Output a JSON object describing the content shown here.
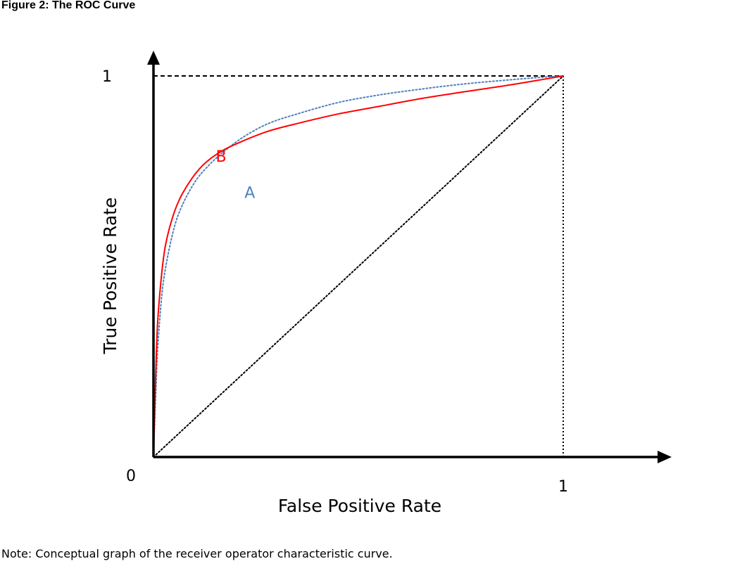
{
  "figure": {
    "title": "Figure 2: The ROC Curve",
    "note": "Note: Conceptual graph of the receiver operator characteristic curve."
  },
  "chart_data": {
    "type": "line",
    "title": "Figure 2: The ROC Curve",
    "xlabel": "False Positive Rate",
    "ylabel": "True Positive Rate",
    "xlim": [
      0,
      1
    ],
    "ylim": [
      0,
      1
    ],
    "origin_label": "0",
    "x_ticks": [
      {
        "value": 1,
        "label": "1"
      }
    ],
    "y_ticks": [
      {
        "value": 1,
        "label": "1"
      }
    ],
    "grid": false,
    "legend": "none",
    "series": [
      {
        "name": "A",
        "style": "dotted",
        "color": "#4F81BD",
        "x": [
          0,
          0.005,
          0.01,
          0.02,
          0.03,
          0.05,
          0.07,
          0.1,
          0.13,
          0.17,
          0.22,
          0.28,
          0.35,
          0.45,
          0.55,
          0.65,
          0.75,
          0.85,
          0.93,
          1
        ],
        "y": [
          0,
          0.15,
          0.28,
          0.42,
          0.5,
          0.6,
          0.66,
          0.72,
          0.76,
          0.8,
          0.84,
          0.875,
          0.9,
          0.93,
          0.95,
          0.965,
          0.978,
          0.988,
          0.995,
          1
        ]
      },
      {
        "name": "B",
        "style": "solid",
        "color": "#FF0000",
        "x": [
          0,
          0.005,
          0.01,
          0.02,
          0.03,
          0.05,
          0.07,
          0.1,
          0.13,
          0.17,
          0.22,
          0.28,
          0.35,
          0.45,
          0.55,
          0.65,
          0.75,
          0.85,
          0.93,
          1
        ],
        "y": [
          0,
          0.2,
          0.35,
          0.48,
          0.56,
          0.64,
          0.69,
          0.74,
          0.775,
          0.805,
          0.83,
          0.855,
          0.875,
          0.9,
          0.92,
          0.94,
          0.957,
          0.973,
          0.987,
          1
        ]
      },
      {
        "name": "",
        "style": "dotted",
        "color": "#000000",
        "x": [
          0,
          1
        ],
        "y": [
          0,
          1
        ]
      }
    ],
    "reference_lines": [
      {
        "style": "dashed",
        "from": [
          0,
          1
        ],
        "to": [
          1,
          1
        ]
      },
      {
        "style": "dotted",
        "from": [
          1,
          0
        ],
        "to": [
          1,
          1
        ]
      }
    ]
  }
}
